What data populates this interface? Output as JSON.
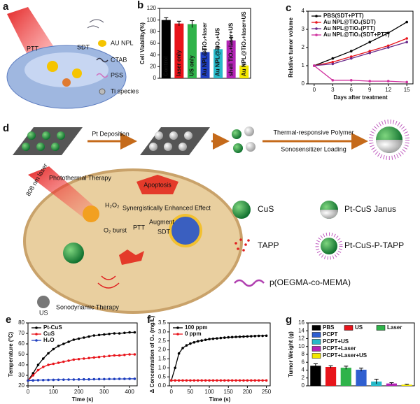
{
  "diagram_a": {
    "panel": "a",
    "ptt": "PTT",
    "sdt": "SDT",
    "legend": [
      "AU NPL",
      "CTAB",
      "PSS",
      "Ti species"
    ]
  },
  "diagram_d": {
    "panel": "d",
    "pt_deposition": "Pt Deposition",
    "polymer": "Thermal-responsive Polymer",
    "loading": "Sonosensitizer Loading",
    "photothermal": "Photothermal Therapy",
    "laser": "808 nm laser",
    "h2o2": "H₂O₂",
    "synergy": "Synergistically Enhanced Effect",
    "o2": "O₂ burst",
    "ptt": "PTT",
    "augment": "Augment",
    "sdt": "SDT",
    "apoptosis": "Apoptosis",
    "us": "US",
    "sonodynamic": "Sonodynamic Therapy",
    "legend": [
      "CuS",
      "Pt-CuS Janus",
      "TAPP",
      "Pt-CuS-P-TAPP",
      "p(OEGMA-co-MEMA)"
    ]
  },
  "chart_data": [
    {
      "type": "bar",
      "panel": "b",
      "ylabel": "Cell Viability(%)",
      "categories": [
        "Control",
        "laser only",
        "US only",
        "Au NPL@TiO₂+laser",
        "Au NPL@TiO₂+US",
        "shell TiO₂+laser+US",
        "Au NPL@TiO₂+laser+US"
      ],
      "values": [
        100,
        94,
        93,
        45,
        50,
        65,
        22
      ],
      "errors": [
        4,
        4,
        6,
        4,
        3,
        5,
        2
      ],
      "colors": [
        "#000000",
        "#e8141b",
        "#2fb34a",
        "#1f3fbf",
        "#27b9c8",
        "#b224b5",
        "#f2e600"
      ],
      "ylim": [
        0,
        120
      ],
      "yticks": [
        0,
        20,
        40,
        60,
        80,
        100,
        120
      ]
    },
    {
      "type": "line",
      "panel": "c",
      "ylabel": "Relative tumor volume",
      "xlabel": "Days after treatment",
      "x": [
        0,
        3,
        6,
        9,
        12,
        15
      ],
      "series": [
        {
          "name": "PBS(SDT+PTT)",
          "color": "#000000",
          "values": [
            1,
            1.4,
            1.8,
            2.3,
            2.8,
            3.4
          ]
        },
        {
          "name": "Au NPL@TiO₂(SDT)",
          "color": "#e8141b",
          "values": [
            1,
            1.2,
            1.5,
            1.8,
            2.1,
            2.5
          ]
        },
        {
          "name": "Au NPL@TiO₂(PTT)",
          "color": "#6a2a8a",
          "values": [
            1,
            1.1,
            1.4,
            1.7,
            2.0,
            2.3
          ]
        },
        {
          "name": "Au NPL@TiO₂(SDT+PTT)",
          "color": "#d0309f",
          "values": [
            1,
            0.2,
            0.2,
            0.15,
            0.15,
            0.1
          ]
        }
      ],
      "xlim": [
        -1,
        16
      ],
      "xticks": [
        0,
        3,
        6,
        9,
        12,
        15
      ],
      "ylim": [
        0,
        4
      ],
      "yticks": [
        0,
        1,
        2,
        3,
        4
      ]
    },
    {
      "type": "line",
      "panel": "e",
      "ylabel": "Temperature (°C)",
      "xlabel": "Time (s)",
      "x": [
        0,
        20,
        40,
        60,
        80,
        100,
        120,
        140,
        160,
        180,
        200,
        220,
        240,
        260,
        280,
        300,
        320,
        340,
        360,
        380,
        400,
        420
      ],
      "series": [
        {
          "name": "Pt-CuS",
          "color": "#000000",
          "values": [
            25,
            32,
            40,
            46,
            51,
            55,
            58,
            60,
            62,
            64,
            65,
            66,
            67,
            68,
            68.5,
            69,
            69.5,
            70,
            70,
            70.5,
            71,
            71
          ]
        },
        {
          "name": "CuS",
          "color": "#e8141b",
          "values": [
            25,
            30,
            35,
            38,
            40,
            41,
            42,
            43,
            44,
            45,
            45.5,
            46,
            46.5,
            47,
            47.5,
            48,
            48.5,
            49,
            49,
            49.5,
            50,
            50
          ]
        },
        {
          "name": "H₂O",
          "color": "#1f3fbf",
          "values": [
            25,
            25.2,
            25.4,
            25.5,
            25.6,
            25.7,
            25.8,
            25.9,
            26,
            26,
            26.1,
            26.2,
            26.2,
            26.3,
            26.4,
            26.4,
            26.5,
            26.5,
            26.6,
            26.6,
            26.7,
            26.7
          ]
        }
      ],
      "xlim": [
        0,
        430
      ],
      "xticks": [
        0,
        100,
        200,
        300,
        400
      ],
      "ylim": [
        20,
        80
      ],
      "yticks": [
        20,
        30,
        40,
        50,
        60,
        70,
        80
      ]
    },
    {
      "type": "line",
      "panel": "f",
      "ylabel": "Δ Concentration of O₂ (mg/L)",
      "xlabel": "Time (s)",
      "x": [
        0,
        10,
        20,
        30,
        40,
        50,
        60,
        70,
        80,
        90,
        100,
        110,
        120,
        130,
        140,
        150,
        160,
        170,
        180,
        190,
        200,
        210,
        220,
        230,
        240,
        250
      ],
      "series": [
        {
          "name": "100 ppm",
          "color": "#000000",
          "values": [
            0.3,
            1.0,
            1.8,
            2.1,
            2.25,
            2.35,
            2.42,
            2.48,
            2.52,
            2.56,
            2.6,
            2.62,
            2.64,
            2.66,
            2.68,
            2.7,
            2.71,
            2.72,
            2.73,
            2.74,
            2.75,
            2.76,
            2.77,
            2.78,
            2.78,
            2.79
          ]
        },
        {
          "name": "0 ppm",
          "color": "#e8141b",
          "values": [
            0.3,
            0.3,
            0.3,
            0.3,
            0.3,
            0.3,
            0.3,
            0.3,
            0.3,
            0.3,
            0.3,
            0.3,
            0.3,
            0.3,
            0.3,
            0.3,
            0.3,
            0.3,
            0.3,
            0.3,
            0.3,
            0.3,
            0.3,
            0.3,
            0.3,
            0.3
          ]
        }
      ],
      "xlim": [
        -5,
        260
      ],
      "xticks": [
        0,
        50,
        100,
        150,
        200,
        250
      ],
      "ylim": [
        0,
        3.5
      ],
      "yticks": [
        {
          "value": 0,
          "label": "0.0"
        },
        0.5,
        {
          "value": 1,
          "label": "1.0"
        },
        1.5,
        {
          "value": 2,
          "label": "2.0"
        },
        2.5,
        {
          "value": 3,
          "label": "3.0"
        },
        3.5
      ]
    },
    {
      "type": "bar",
      "panel": "g",
      "ylabel": "Tumor Weight (g)",
      "category_labels": "legend",
      "categories": [
        "PBS",
        "US",
        "Laser",
        "PCPT",
        "PCPT+US",
        "PCPT+Laser",
        "PCPT+Laser+US"
      ],
      "values": [
        5.1,
        4.8,
        4.6,
        4.1,
        1.1,
        0.6,
        0.3
      ],
      "errors": [
        0.5,
        0.3,
        0.4,
        0.4,
        0.6,
        0.2,
        0.1
      ],
      "colors": [
        "#000000",
        "#e8141b",
        "#2fb34a",
        "#2f5fd0",
        "#27b9c8",
        "#b224b5",
        "#f2e600"
      ],
      "ylim": [
        0,
        16
      ],
      "yticks": [
        0,
        2,
        4,
        6,
        8,
        10,
        12,
        14,
        16
      ]
    }
  ]
}
